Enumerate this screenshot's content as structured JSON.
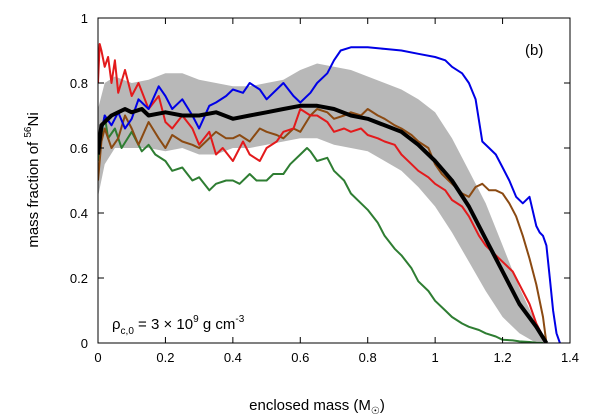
{
  "chart_data": {
    "type": "line",
    "panel_label": "(b)",
    "xlabel": {
      "text": "enclosed mass (M",
      "sub": "☉",
      "close": ")"
    },
    "ylabel": {
      "pre": "mass fraction of ",
      "sup": "56",
      "post": "Ni"
    },
    "annotation": {
      "rho": "ρ",
      "sub": "c,0",
      "mid": " = 3 × 10",
      "sup1": "9",
      "unit": " g cm",
      "sup2": "-3"
    },
    "xlim": [
      0,
      1.4
    ],
    "ylim": [
      0,
      1
    ],
    "xticks": [
      "0",
      "0.2",
      "0.4",
      "0.6",
      "0.8",
      "1",
      "1.2",
      "1.4"
    ],
    "yticks": [
      "0",
      "0.2",
      "0.4",
      "0.6",
      "0.8",
      "1"
    ],
    "grid": false,
    "band": {
      "color": "#b8b8b8",
      "x": [
        0.0,
        0.02,
        0.05,
        0.1,
        0.15,
        0.2,
        0.25,
        0.3,
        0.35,
        0.4,
        0.45,
        0.5,
        0.55,
        0.6,
        0.65,
        0.7,
        0.75,
        0.8,
        0.85,
        0.9,
        0.95,
        1.0,
        1.05,
        1.1,
        1.15,
        1.2,
        1.25,
        1.3,
        1.33
      ],
      "upper": [
        0.72,
        0.8,
        0.82,
        0.8,
        0.81,
        0.83,
        0.83,
        0.81,
        0.8,
        0.79,
        0.79,
        0.8,
        0.81,
        0.84,
        0.86,
        0.85,
        0.84,
        0.82,
        0.8,
        0.78,
        0.75,
        0.71,
        0.63,
        0.53,
        0.43,
        0.3,
        0.17,
        0.06,
        0.0
      ],
      "lower": [
        0.45,
        0.55,
        0.6,
        0.6,
        0.6,
        0.59,
        0.6,
        0.58,
        0.58,
        0.6,
        0.6,
        0.61,
        0.62,
        0.63,
        0.63,
        0.61,
        0.6,
        0.59,
        0.56,
        0.53,
        0.48,
        0.42,
        0.34,
        0.25,
        0.16,
        0.08,
        0.03,
        0.0,
        0.0
      ]
    },
    "series": [
      {
        "color": "#2e7d32",
        "width": 2,
        "x": [
          0.0,
          0.01,
          0.02,
          0.03,
          0.05,
          0.07,
          0.1,
          0.13,
          0.15,
          0.17,
          0.2,
          0.22,
          0.25,
          0.28,
          0.3,
          0.33,
          0.35,
          0.38,
          0.4,
          0.42,
          0.45,
          0.47,
          0.5,
          0.52,
          0.55,
          0.57,
          0.6,
          0.62,
          0.63,
          0.65,
          0.68,
          0.7,
          0.73,
          0.75,
          0.78,
          0.8,
          0.83,
          0.85,
          0.88,
          0.9,
          0.93,
          0.95,
          0.98,
          1.0,
          1.03,
          1.05,
          1.08,
          1.1,
          1.13,
          1.15,
          1.18,
          1.2,
          1.23,
          1.25,
          1.28,
          1.3,
          1.32
        ],
        "y": [
          0.56,
          0.64,
          0.7,
          0.63,
          0.66,
          0.6,
          0.65,
          0.59,
          0.61,
          0.58,
          0.56,
          0.53,
          0.54,
          0.5,
          0.51,
          0.47,
          0.49,
          0.5,
          0.5,
          0.49,
          0.52,
          0.5,
          0.5,
          0.52,
          0.52,
          0.55,
          0.58,
          0.6,
          0.59,
          0.56,
          0.57,
          0.53,
          0.5,
          0.46,
          0.43,
          0.41,
          0.37,
          0.33,
          0.29,
          0.27,
          0.23,
          0.19,
          0.16,
          0.13,
          0.1,
          0.08,
          0.06,
          0.05,
          0.04,
          0.03,
          0.02,
          0.01,
          0.008,
          0.005,
          0.003,
          0.001,
          0.0
        ]
      },
      {
        "color": "#8b4a12",
        "width": 2,
        "x": [
          0.0,
          0.01,
          0.02,
          0.04,
          0.06,
          0.08,
          0.1,
          0.12,
          0.15,
          0.18,
          0.2,
          0.22,
          0.25,
          0.28,
          0.3,
          0.32,
          0.35,
          0.38,
          0.4,
          0.42,
          0.45,
          0.48,
          0.5,
          0.53,
          0.55,
          0.58,
          0.6,
          0.63,
          0.65,
          0.68,
          0.7,
          0.73,
          0.75,
          0.78,
          0.8,
          0.83,
          0.85,
          0.88,
          0.9,
          0.93,
          0.95,
          0.98,
          1.0,
          1.02,
          1.04,
          1.06,
          1.08,
          1.1,
          1.12,
          1.14,
          1.16,
          1.18,
          1.2,
          1.22,
          1.24,
          1.26,
          1.28,
          1.3,
          1.32,
          1.33
        ],
        "y": [
          0.5,
          0.62,
          0.66,
          0.6,
          0.63,
          0.7,
          0.66,
          0.61,
          0.68,
          0.63,
          0.6,
          0.64,
          0.62,
          0.61,
          0.6,
          0.62,
          0.65,
          0.63,
          0.63,
          0.64,
          0.62,
          0.66,
          0.65,
          0.64,
          0.63,
          0.66,
          0.65,
          0.7,
          0.72,
          0.71,
          0.69,
          0.7,
          0.71,
          0.7,
          0.72,
          0.7,
          0.69,
          0.67,
          0.66,
          0.64,
          0.62,
          0.6,
          0.55,
          0.52,
          0.5,
          0.48,
          0.46,
          0.45,
          0.48,
          0.49,
          0.47,
          0.47,
          0.46,
          0.43,
          0.39,
          0.33,
          0.26,
          0.18,
          0.08,
          0.0
        ]
      },
      {
        "color": "#e31a1c",
        "width": 2,
        "x": [
          0.0,
          0.005,
          0.01,
          0.02,
          0.03,
          0.04,
          0.05,
          0.06,
          0.08,
          0.1,
          0.12,
          0.15,
          0.18,
          0.2,
          0.22,
          0.25,
          0.28,
          0.3,
          0.33,
          0.35,
          0.37,
          0.4,
          0.43,
          0.45,
          0.48,
          0.5,
          0.53,
          0.55,
          0.58,
          0.6,
          0.63,
          0.65,
          0.68,
          0.7,
          0.73,
          0.75,
          0.78,
          0.8,
          0.83,
          0.85,
          0.88,
          0.9,
          0.93,
          0.95,
          0.98,
          1.0,
          1.03,
          1.05,
          1.08,
          1.1,
          1.13,
          1.15,
          1.18,
          1.2,
          1.23,
          1.25,
          1.28,
          1.3,
          1.33
        ],
        "y": [
          0.8,
          0.92,
          0.9,
          0.85,
          0.88,
          0.8,
          0.87,
          0.77,
          0.84,
          0.76,
          0.8,
          0.72,
          0.76,
          0.68,
          0.66,
          0.7,
          0.66,
          0.61,
          0.65,
          0.58,
          0.6,
          0.56,
          0.62,
          0.58,
          0.56,
          0.6,
          0.62,
          0.65,
          0.66,
          0.72,
          0.7,
          0.7,
          0.68,
          0.65,
          0.66,
          0.65,
          0.66,
          0.64,
          0.63,
          0.62,
          0.61,
          0.58,
          0.55,
          0.53,
          0.51,
          0.49,
          0.47,
          0.44,
          0.42,
          0.39,
          0.33,
          0.3,
          0.27,
          0.25,
          0.22,
          0.18,
          0.12,
          0.06,
          0.0
        ]
      },
      {
        "color": "#0000e6",
        "width": 2,
        "x": [
          0.0,
          0.01,
          0.02,
          0.04,
          0.06,
          0.08,
          0.1,
          0.12,
          0.15,
          0.18,
          0.2,
          0.22,
          0.25,
          0.28,
          0.3,
          0.33,
          0.35,
          0.38,
          0.4,
          0.43,
          0.45,
          0.48,
          0.5,
          0.53,
          0.55,
          0.58,
          0.6,
          0.63,
          0.65,
          0.68,
          0.7,
          0.72,
          0.75,
          0.8,
          0.85,
          0.9,
          0.95,
          1.0,
          1.03,
          1.05,
          1.08,
          1.1,
          1.12,
          1.14,
          1.16,
          1.18,
          1.2,
          1.22,
          1.24,
          1.26,
          1.28,
          1.3,
          1.31,
          1.32,
          1.33,
          1.34,
          1.35,
          1.36,
          1.37
        ],
        "y": [
          0.62,
          0.65,
          0.7,
          0.67,
          0.71,
          0.66,
          0.69,
          0.75,
          0.72,
          0.79,
          0.76,
          0.72,
          0.75,
          0.7,
          0.66,
          0.73,
          0.74,
          0.76,
          0.78,
          0.77,
          0.8,
          0.78,
          0.75,
          0.78,
          0.8,
          0.76,
          0.74,
          0.77,
          0.8,
          0.83,
          0.87,
          0.9,
          0.91,
          0.91,
          0.905,
          0.9,
          0.89,
          0.88,
          0.87,
          0.85,
          0.83,
          0.8,
          0.75,
          0.62,
          0.6,
          0.58,
          0.54,
          0.5,
          0.45,
          0.43,
          0.45,
          0.36,
          0.34,
          0.33,
          0.3,
          0.2,
          0.1,
          0.03,
          0.0
        ]
      },
      {
        "color": "#000000",
        "width": 4,
        "x": [
          0.0,
          0.01,
          0.02,
          0.04,
          0.06,
          0.08,
          0.1,
          0.13,
          0.15,
          0.2,
          0.25,
          0.3,
          0.35,
          0.4,
          0.45,
          0.5,
          0.55,
          0.6,
          0.65,
          0.7,
          0.75,
          0.8,
          0.85,
          0.9,
          0.95,
          1.0,
          1.05,
          1.1,
          1.15,
          1.2,
          1.25,
          1.3,
          1.33
        ],
        "y": [
          0.58,
          0.67,
          0.68,
          0.7,
          0.71,
          0.72,
          0.71,
          0.72,
          0.7,
          0.71,
          0.7,
          0.7,
          0.71,
          0.69,
          0.7,
          0.71,
          0.72,
          0.73,
          0.73,
          0.72,
          0.7,
          0.69,
          0.67,
          0.65,
          0.61,
          0.56,
          0.5,
          0.42,
          0.32,
          0.22,
          0.12,
          0.05,
          0.0
        ]
      }
    ]
  }
}
